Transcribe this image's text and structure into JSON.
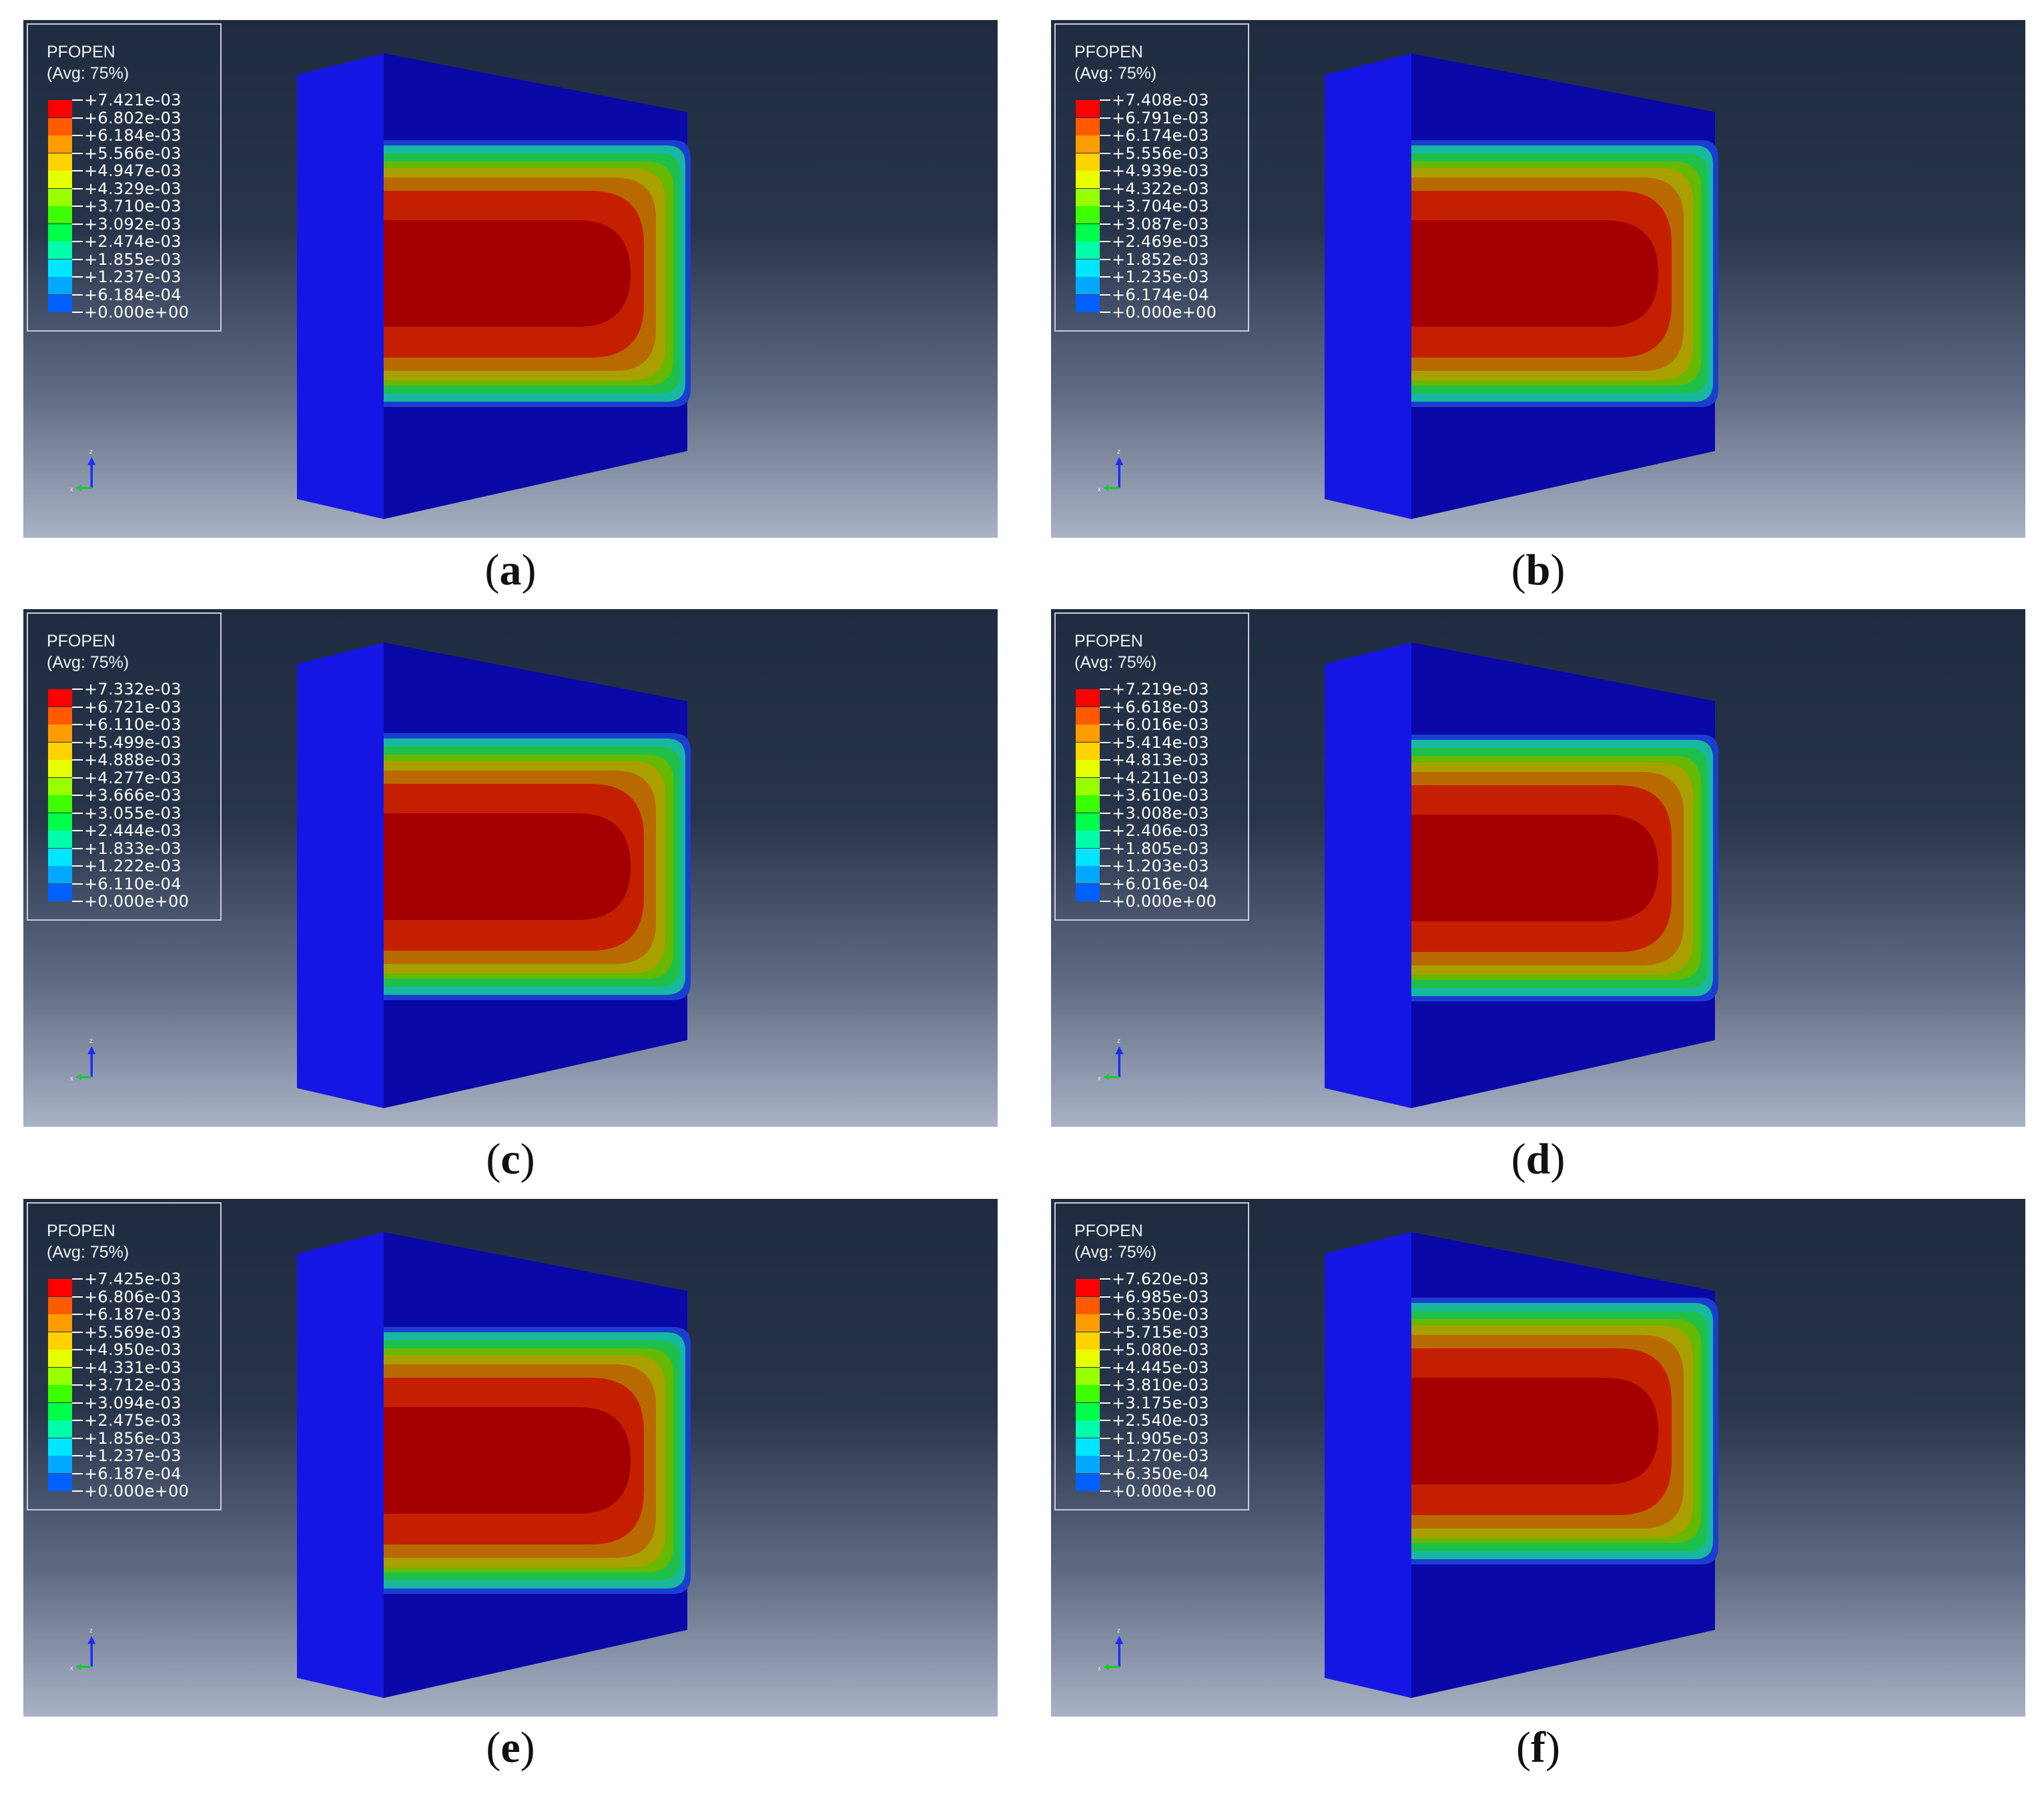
{
  "colors": {
    "legend": [
      "#ff0000",
      "#ff5a00",
      "#ff9c00",
      "#ffd200",
      "#e8ff00",
      "#98ff00",
      "#3cff00",
      "#00ff4a",
      "#00ffaa",
      "#00e6ff",
      "#00a8ff",
      "#0060ff",
      "#0000ff"
    ],
    "contour": [
      "#a50000",
      "#c42000",
      "#b86a00",
      "#a9a000",
      "#66b800",
      "#1fc04a",
      "#18b8a0",
      "#1a3fd0",
      "#0d0fa8"
    ],
    "block_front": "#0b08a8",
    "block_side": "#1616e4"
  },
  "panels": [
    {
      "caption": "a",
      "legend": {
        "title": "PFOPEN",
        "avg": "(Avg: 75%)",
        "values": [
          "+7.421e-03",
          "+6.802e-03",
          "+6.184e-03",
          "+5.566e-03",
          "+4.947e-03",
          "+4.329e-03",
          "+3.710e-03",
          "+3.092e-03",
          "+2.474e-03",
          "+1.855e-03",
          "+1.237e-03",
          "+6.184e-04",
          "+0.000e+00"
        ]
      },
      "triad": {
        "z": "z",
        "x": "x"
      }
    },
    {
      "caption": "b",
      "legend": {
        "title": "PFOPEN",
        "avg": "(Avg: 75%)",
        "values": [
          "+7.408e-03",
          "+6.791e-03",
          "+6.174e-03",
          "+5.556e-03",
          "+4.939e-03",
          "+4.322e-03",
          "+3.704e-03",
          "+3.087e-03",
          "+2.469e-03",
          "+1.852e-03",
          "+1.235e-03",
          "+6.174e-04",
          "+0.000e+00"
        ]
      },
      "triad": {
        "z": "z",
        "x": "x"
      }
    },
    {
      "caption": "c",
      "legend": {
        "title": "PFOPEN",
        "avg": "(Avg: 75%)",
        "values": [
          "+7.332e-03",
          "+6.721e-03",
          "+6.110e-03",
          "+5.499e-03",
          "+4.888e-03",
          "+4.277e-03",
          "+3.666e-03",
          "+3.055e-03",
          "+2.444e-03",
          "+1.833e-03",
          "+1.222e-03",
          "+6.110e-04",
          "+0.000e+00"
        ]
      },
      "triad": {
        "z": "z",
        "x": "x"
      }
    },
    {
      "caption": "d",
      "legend": {
        "title": "PFOPEN",
        "avg": "(Avg: 75%)",
        "values": [
          "+7.219e-03",
          "+6.618e-03",
          "+6.016e-03",
          "+5.414e-03",
          "+4.813e-03",
          "+4.211e-03",
          "+3.610e-03",
          "+3.008e-03",
          "+2.406e-03",
          "+1.805e-03",
          "+1.203e-03",
          "+6.016e-04",
          "+0.000e+00"
        ]
      },
      "triad": {
        "z": "z",
        "x": "x"
      }
    },
    {
      "caption": "e",
      "legend": {
        "title": "PFOPEN",
        "avg": "(Avg: 75%)",
        "values": [
          "+7.425e-03",
          "+6.806e-03",
          "+6.187e-03",
          "+5.569e-03",
          "+4.950e-03",
          "+4.331e-03",
          "+3.712e-03",
          "+3.094e-03",
          "+2.475e-03",
          "+1.856e-03",
          "+1.237e-03",
          "+6.187e-04",
          "+0.000e+00"
        ]
      },
      "triad": {
        "z": "z",
        "x": "x"
      }
    },
    {
      "caption": "f",
      "legend": {
        "title": "PFOPEN",
        "avg": "(Avg: 75%)",
        "values": [
          "+7.620e-03",
          "+6.985e-03",
          "+6.350e-03",
          "+5.715e-03",
          "+5.080e-03",
          "+4.445e-03",
          "+3.810e-03",
          "+3.175e-03",
          "+2.540e-03",
          "+1.905e-03",
          "+1.270e-03",
          "+6.350e-04",
          "+0.000e+00"
        ]
      },
      "triad": {
        "z": "z",
        "x": "x"
      }
    }
  ]
}
